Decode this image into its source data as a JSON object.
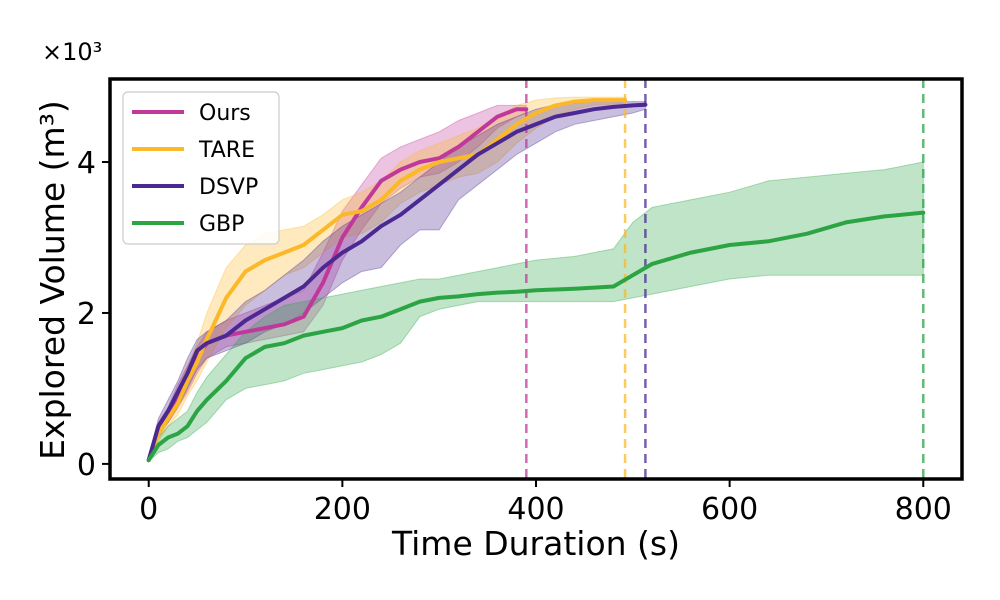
{
  "chart_data": {
    "type": "line",
    "title": "",
    "xlabel": "Time Duration (s)",
    "ylabel": "Explored Volume (m³)",
    "y_multiplier_text": "×10³",
    "xlim": [
      -40,
      840
    ],
    "ylim": [
      -0.2,
      5.1
    ],
    "x_ticks": [
      0,
      200,
      400,
      600,
      800
    ],
    "x_tick_labels": [
      "0",
      "200",
      "400",
      "600",
      "800"
    ],
    "y_ticks": [
      0,
      2,
      4
    ],
    "y_tick_labels": [
      "0",
      "2",
      "4"
    ],
    "grid": false,
    "legend_position": "top-left",
    "series": [
      {
        "name": "Ours",
        "color": "#c0399a",
        "end_time": 390,
        "x": [
          0,
          10,
          20,
          30,
          40,
          50,
          60,
          80,
          100,
          120,
          140,
          160,
          180,
          200,
          220,
          240,
          260,
          280,
          300,
          320,
          340,
          360,
          380,
          390
        ],
        "y": [
          0.05,
          0.45,
          0.65,
          0.9,
          1.1,
          1.4,
          1.6,
          1.7,
          1.75,
          1.8,
          1.85,
          1.95,
          2.4,
          3.0,
          3.4,
          3.75,
          3.9,
          4.0,
          4.05,
          4.2,
          4.4,
          4.6,
          4.7,
          4.7
        ],
        "lower": [
          0.05,
          0.35,
          0.55,
          0.75,
          0.95,
          1.2,
          1.4,
          1.55,
          1.6,
          1.65,
          1.7,
          1.75,
          2.1,
          2.7,
          3.1,
          3.45,
          3.65,
          3.8,
          3.85,
          4.0,
          4.2,
          4.45,
          4.6,
          4.65
        ],
        "upper": [
          0.1,
          0.55,
          0.75,
          1.05,
          1.3,
          1.55,
          1.75,
          1.9,
          2.0,
          2.1,
          2.2,
          2.3,
          2.8,
          3.35,
          3.7,
          4.05,
          4.2,
          4.3,
          4.4,
          4.55,
          4.65,
          4.75,
          4.75,
          4.75
        ]
      },
      {
        "name": "TARE",
        "color": "#fbb829",
        "end_time": 492,
        "x": [
          0,
          10,
          20,
          30,
          40,
          50,
          60,
          80,
          100,
          120,
          140,
          160,
          180,
          200,
          220,
          240,
          260,
          280,
          300,
          320,
          340,
          360,
          380,
          400,
          420,
          440,
          460,
          492
        ],
        "y": [
          0.05,
          0.4,
          0.6,
          0.8,
          1.1,
          1.35,
          1.65,
          2.2,
          2.55,
          2.7,
          2.8,
          2.9,
          3.1,
          3.3,
          3.35,
          3.5,
          3.75,
          3.9,
          4.0,
          4.05,
          4.1,
          4.3,
          4.5,
          4.65,
          4.75,
          4.8,
          4.82,
          4.82
        ],
        "lower": [
          0.05,
          0.3,
          0.5,
          0.65,
          0.9,
          1.1,
          1.35,
          1.8,
          2.1,
          2.3,
          2.5,
          2.6,
          2.8,
          3.0,
          3.05,
          3.2,
          3.45,
          3.6,
          3.7,
          3.8,
          3.85,
          4.0,
          4.25,
          4.45,
          4.6,
          4.7,
          4.75,
          4.78
        ],
        "upper": [
          0.1,
          0.55,
          0.7,
          1.0,
          1.3,
          1.6,
          2.0,
          2.6,
          2.9,
          3.05,
          3.1,
          3.15,
          3.3,
          3.5,
          3.6,
          3.75,
          4.0,
          4.15,
          4.25,
          4.35,
          4.45,
          4.6,
          4.75,
          4.82,
          4.85,
          4.86,
          4.86,
          4.86
        ]
      },
      {
        "name": "DSVP",
        "color": "#4b2991",
        "end_time": 513,
        "x": [
          0,
          10,
          20,
          30,
          40,
          50,
          60,
          80,
          100,
          120,
          140,
          160,
          180,
          200,
          220,
          240,
          260,
          280,
          300,
          320,
          340,
          360,
          380,
          400,
          420,
          440,
          460,
          480,
          500,
          513
        ],
        "y": [
          0.05,
          0.5,
          0.7,
          0.95,
          1.2,
          1.5,
          1.6,
          1.7,
          1.9,
          2.05,
          2.2,
          2.35,
          2.6,
          2.8,
          2.95,
          3.15,
          3.3,
          3.5,
          3.7,
          3.9,
          4.1,
          4.25,
          4.4,
          4.5,
          4.6,
          4.65,
          4.7,
          4.73,
          4.75,
          4.76
        ],
        "lower": [
          0.05,
          0.4,
          0.55,
          0.75,
          1.0,
          1.25,
          1.4,
          1.5,
          1.6,
          1.75,
          1.85,
          2.0,
          2.2,
          2.4,
          2.55,
          2.6,
          2.9,
          3.1,
          3.1,
          3.5,
          3.7,
          3.9,
          4.1,
          4.25,
          4.4,
          4.5,
          4.55,
          4.6,
          4.65,
          4.7
        ],
        "upper": [
          0.1,
          0.6,
          0.85,
          1.1,
          1.4,
          1.65,
          1.75,
          1.9,
          2.15,
          2.3,
          2.5,
          2.7,
          2.95,
          3.15,
          3.3,
          3.45,
          3.6,
          3.8,
          4.0,
          4.2,
          4.35,
          4.5,
          4.6,
          4.7,
          4.76,
          4.78,
          4.8,
          4.8,
          4.8,
          4.8
        ]
      },
      {
        "name": "GBP",
        "color": "#2ca444",
        "end_time": 800,
        "x": [
          0,
          10,
          20,
          30,
          40,
          50,
          60,
          80,
          100,
          120,
          140,
          160,
          180,
          200,
          220,
          240,
          260,
          280,
          300,
          320,
          340,
          360,
          380,
          400,
          440,
          480,
          500,
          520,
          560,
          600,
          640,
          680,
          720,
          760,
          800
        ],
        "y": [
          0.05,
          0.25,
          0.35,
          0.4,
          0.5,
          0.7,
          0.85,
          1.1,
          1.4,
          1.55,
          1.6,
          1.7,
          1.75,
          1.8,
          1.9,
          1.95,
          2.05,
          2.15,
          2.2,
          2.22,
          2.25,
          2.27,
          2.28,
          2.3,
          2.32,
          2.35,
          2.5,
          2.65,
          2.8,
          2.9,
          2.95,
          3.05,
          3.2,
          3.28,
          3.33
        ],
        "lower": [
          0.03,
          0.15,
          0.2,
          0.3,
          0.35,
          0.45,
          0.55,
          0.85,
          1.0,
          1.05,
          1.1,
          1.2,
          1.25,
          1.3,
          1.35,
          1.45,
          1.6,
          1.95,
          2.05,
          2.1,
          2.15,
          2.15,
          2.15,
          2.15,
          2.15,
          2.15,
          2.2,
          2.25,
          2.35,
          2.45,
          2.5,
          2.5,
          2.5,
          2.5,
          2.5
        ],
        "upper": [
          0.1,
          0.35,
          0.5,
          0.6,
          0.7,
          0.95,
          1.15,
          1.45,
          1.75,
          1.95,
          2.1,
          2.15,
          2.2,
          2.25,
          2.3,
          2.35,
          2.4,
          2.45,
          2.45,
          2.5,
          2.55,
          2.6,
          2.65,
          2.7,
          2.75,
          2.85,
          3.2,
          3.4,
          3.5,
          3.6,
          3.75,
          3.8,
          3.85,
          3.9,
          4.0
        ]
      }
    ]
  }
}
